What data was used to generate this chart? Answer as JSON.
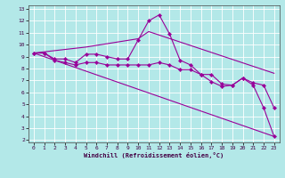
{
  "xlabel": "Windchill (Refroidissement éolien,°C)",
  "bg_color": "#b3e8e8",
  "line_color": "#990099",
  "xlim": [
    -0.5,
    23.5
  ],
  "ylim": [
    1.8,
    13.3
  ],
  "xticks": [
    0,
    1,
    2,
    3,
    4,
    5,
    6,
    7,
    8,
    9,
    10,
    11,
    12,
    13,
    14,
    15,
    16,
    17,
    18,
    19,
    20,
    21,
    22,
    23
  ],
  "yticks": [
    2,
    3,
    4,
    5,
    6,
    7,
    8,
    9,
    10,
    11,
    12,
    13
  ],
  "series": [
    {
      "x": [
        0,
        1,
        2,
        3,
        4,
        5,
        6,
        7,
        8,
        9,
        10,
        11,
        12,
        13,
        14,
        15,
        16,
        17,
        18,
        19,
        20,
        21,
        22,
        23
      ],
      "y": [
        9.3,
        9.3,
        8.8,
        8.8,
        8.5,
        9.2,
        9.2,
        9.0,
        8.8,
        8.8,
        10.4,
        12.0,
        12.5,
        10.9,
        8.7,
        8.3,
        7.5,
        7.5,
        6.7,
        6.6,
        7.2,
        6.6,
        4.7,
        2.3
      ],
      "has_marker": true
    },
    {
      "x": [
        0,
        23
      ],
      "y": [
        9.3,
        2.3
      ],
      "has_marker": false
    },
    {
      "x": [
        0,
        1,
        2,
        3,
        4,
        5,
        6,
        7,
        8,
        9,
        10,
        11,
        12,
        13,
        14,
        15,
        16,
        17,
        18,
        19,
        20,
        21,
        22,
        23
      ],
      "y": [
        9.3,
        9.3,
        8.7,
        8.5,
        8.3,
        8.5,
        8.5,
        8.3,
        8.3,
        8.3,
        8.3,
        8.3,
        8.5,
        8.3,
        7.9,
        7.9,
        7.5,
        6.9,
        6.5,
        6.6,
        7.2,
        6.8,
        6.6,
        4.7
      ],
      "has_marker": true
    },
    {
      "x": [
        0,
        5,
        10,
        11,
        23
      ],
      "y": [
        9.3,
        9.8,
        10.5,
        11.1,
        7.6
      ],
      "has_marker": false
    }
  ]
}
